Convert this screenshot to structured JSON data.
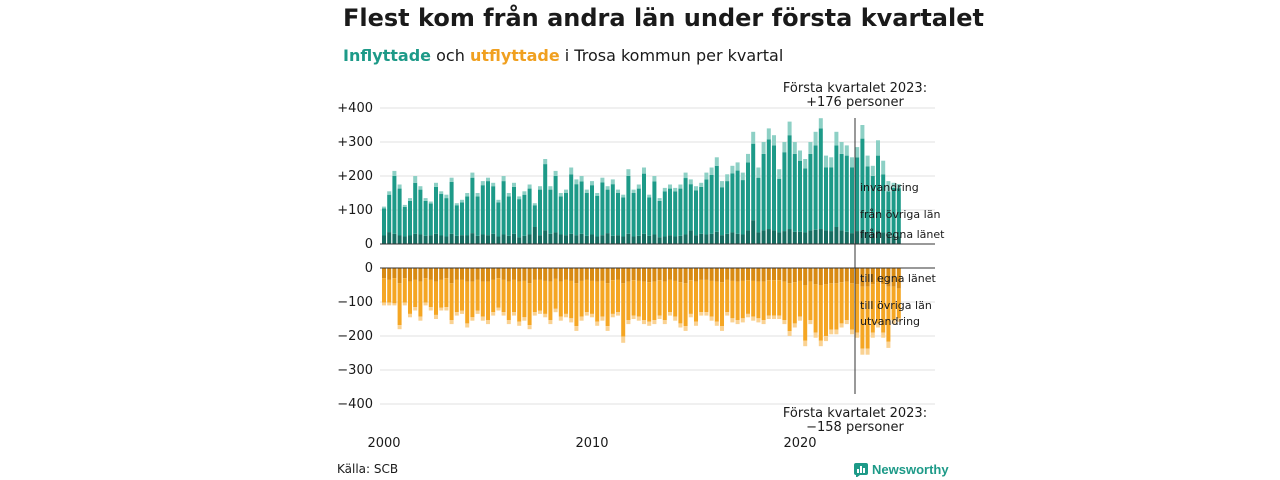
{
  "header": {
    "title": "Flest kom från andra län under första kvartalet",
    "subtitle_in": "Inflyttade",
    "subtitle_mid": " och ",
    "subtitle_out": "utflyttade",
    "subtitle_rest": " i Trosa kommun per kvartal"
  },
  "annotations": {
    "top_line1": "Första kvartalet 2023:",
    "top_line2": "+176 personer",
    "bottom_line1": "Första kvartalet 2023:",
    "bottom_line2": "−158 personer"
  },
  "footer": {
    "source": "Källa: SCB",
    "brand": "Newsworthy"
  },
  "colors": {
    "in_local": "#166d61",
    "in_other": "#1d9a88",
    "in_immig": "#8dd0c5",
    "out_local": "#d88a12",
    "out_other": "#f5a623",
    "out_emig": "#fad292"
  },
  "chart_data": {
    "type": "bar",
    "stacked": true,
    "x_tick_labels": [
      "2000",
      "2010",
      "2020"
    ],
    "y_ticks": [
      {
        "label": "+400",
        "value": 400
      },
      {
        "label": "+300",
        "value": 300
      },
      {
        "label": "+200",
        "value": 200
      },
      {
        "label": "+100",
        "value": 100
      },
      {
        "label": "0",
        "value": 0
      }
    ],
    "y_ticks_bottom": [
      {
        "label": "0",
        "value": 0
      },
      {
        "label": "−100",
        "value": -100
      },
      {
        "label": "−200",
        "value": -200
      },
      {
        "label": "−300",
        "value": -300
      },
      {
        "label": "−400",
        "value": -400
      }
    ],
    "ylim_top": [
      0,
      400
    ],
    "ylim_bottom": [
      -400,
      0
    ],
    "grid": true,
    "start_year": 2000,
    "series_labels_in": [
      "invandring",
      "från övriga län",
      "från egna länet"
    ],
    "series_labels_out": [
      "till egna länet",
      "till övriga län",
      "utvandring"
    ],
    "total_in": [
      110,
      155,
      215,
      175,
      115,
      135,
      200,
      170,
      135,
      125,
      180,
      155,
      145,
      195,
      120,
      130,
      150,
      210,
      150,
      185,
      195,
      180,
      130,
      200,
      150,
      180,
      140,
      155,
      175,
      120,
      170,
      250,
      170,
      215,
      150,
      160,
      225,
      190,
      200,
      160,
      185,
      150,
      195,
      170,
      190,
      160,
      145,
      220,
      160,
      175,
      225,
      145,
      200,
      135,
      165,
      175,
      165,
      175,
      210,
      190,
      170,
      180,
      210,
      225,
      255,
      185,
      205,
      230,
      240,
      210,
      265,
      330,
      225,
      300,
      340,
      320,
      220,
      300,
      360,
      300,
      275,
      250,
      300,
      330,
      370,
      260,
      255,
      330,
      300,
      290,
      255,
      285,
      350,
      260,
      230,
      305,
      245,
      185,
      180,
      176
    ],
    "from_local": [
      25,
      35,
      30,
      25,
      22,
      25,
      30,
      28,
      24,
      26,
      30,
      25,
      22,
      30,
      24,
      26,
      25,
      32,
      24,
      28,
      26,
      30,
      22,
      28,
      24,
      30,
      20,
      24,
      28,
      50,
      26,
      40,
      30,
      34,
      28,
      26,
      30,
      26,
      30,
      24,
      28,
      22,
      26,
      32,
      24,
      26,
      22,
      30,
      22,
      24,
      30,
      24,
      28,
      20,
      22,
      26,
      22,
      24,
      28,
      40,
      26,
      30,
      28,
      30,
      36,
      26,
      30,
      34,
      30,
      28,
      40,
      70,
      34,
      40,
      44,
      40,
      34,
      38,
      44,
      36,
      36,
      34,
      40,
      42,
      44,
      40,
      38,
      50,
      40,
      36,
      32,
      38,
      40,
      34,
      32,
      40,
      34,
      28,
      26,
      22
    ],
    "immigration": [
      5,
      10,
      15,
      12,
      6,
      8,
      20,
      10,
      8,
      6,
      12,
      8,
      10,
      12,
      6,
      8,
      10,
      15,
      10,
      12,
      10,
      10,
      8,
      15,
      10,
      12,
      8,
      10,
      12,
      6,
      10,
      15,
      10,
      15,
      10,
      10,
      20,
      14,
      16,
      10,
      12,
      8,
      14,
      10,
      14,
      10,
      8,
      20,
      10,
      12,
      18,
      8,
      16,
      8,
      10,
      12,
      10,
      12,
      16,
      14,
      12,
      12,
      20,
      22,
      25,
      18,
      20,
      22,
      24,
      22,
      25,
      35,
      30,
      35,
      32,
      30,
      28,
      30,
      40,
      35,
      30,
      28,
      35,
      40,
      30,
      35,
      30,
      40,
      35,
      30,
      30,
      30,
      40,
      32,
      30,
      45,
      40,
      30,
      15,
      12
    ],
    "total_out": [
      -110,
      -110,
      -110,
      -180,
      -110,
      -145,
      -125,
      -155,
      -110,
      -125,
      -150,
      -125,
      -125,
      -165,
      -140,
      -135,
      -175,
      -155,
      -135,
      -155,
      -165,
      -140,
      -125,
      -140,
      -165,
      -140,
      -170,
      -155,
      -180,
      -140,
      -135,
      -145,
      -165,
      -130,
      -155,
      -145,
      -160,
      -185,
      -155,
      -140,
      -145,
      -170,
      -155,
      -185,
      -145,
      -140,
      -220,
      -165,
      -150,
      -155,
      -165,
      -170,
      -165,
      -150,
      -165,
      -140,
      -155,
      -175,
      -185,
      -145,
      -170,
      -140,
      -140,
      -155,
      -170,
      -185,
      -140,
      -160,
      -165,
      -160,
      -145,
      -155,
      -160,
      -165,
      -150,
      -150,
      -150,
      -165,
      -200,
      -175,
      -155,
      -230,
      -165,
      -205,
      -230,
      -215,
      -195,
      -195,
      -175,
      -165,
      -195,
      -205,
      -255,
      -255,
      -205,
      -175,
      -205,
      -235,
      -165,
      -158
    ],
    "out_local": [
      -30,
      -35,
      -30,
      -45,
      -30,
      -40,
      -35,
      -40,
      -30,
      -35,
      -40,
      -35,
      -30,
      -45,
      -35,
      -35,
      -40,
      -40,
      -35,
      -40,
      -40,
      -35,
      -30,
      -35,
      -40,
      -35,
      -40,
      -38,
      -45,
      -35,
      -35,
      -38,
      -40,
      -32,
      -40,
      -35,
      -38,
      -45,
      -38,
      -35,
      -38,
      -40,
      -38,
      -45,
      -36,
      -35,
      -45,
      -40,
      -36,
      -38,
      -40,
      -42,
      -40,
      -36,
      -40,
      -35,
      -38,
      -42,
      -45,
      -36,
      -40,
      -35,
      -35,
      -38,
      -40,
      -42,
      -35,
      -38,
      -40,
      -38,
      -36,
      -38,
      -40,
      -40,
      -36,
      -36,
      -36,
      -40,
      -45,
      -42,
      -38,
      -50,
      -40,
      -48,
      -50,
      -48,
      -45,
      -45,
      -42,
      -40,
      -45,
      -48,
      -55,
      -55,
      -48,
      -42,
      -48,
      -55,
      -55,
      -60
    ],
    "emigration": [
      -8,
      -8,
      -6,
      -12,
      -8,
      -10,
      -10,
      -12,
      -8,
      -10,
      -12,
      -8,
      -10,
      -12,
      -10,
      -10,
      -12,
      -10,
      -10,
      -12,
      -12,
      -10,
      -8,
      -10,
      -12,
      -10,
      -12,
      -10,
      -12,
      -10,
      -10,
      -10,
      -12,
      -10,
      -12,
      -10,
      -12,
      -14,
      -12,
      -10,
      -10,
      -12,
      -12,
      -14,
      -10,
      -10,
      -18,
      -12,
      -10,
      -12,
      -12,
      -12,
      -12,
      -10,
      -12,
      -10,
      -12,
      -12,
      -14,
      -10,
      -12,
      -10,
      -10,
      -12,
      -12,
      -14,
      -10,
      -12,
      -12,
      -12,
      -10,
      -12,
      -12,
      -12,
      -10,
      -10,
      -10,
      -12,
      -14,
      -12,
      -12,
      -16,
      -12,
      -15,
      -16,
      -15,
      -14,
      -14,
      -12,
      -12,
      -14,
      -15,
      -18,
      -18,
      -15,
      -12,
      -15,
      -18,
      -12,
      -10
    ]
  }
}
